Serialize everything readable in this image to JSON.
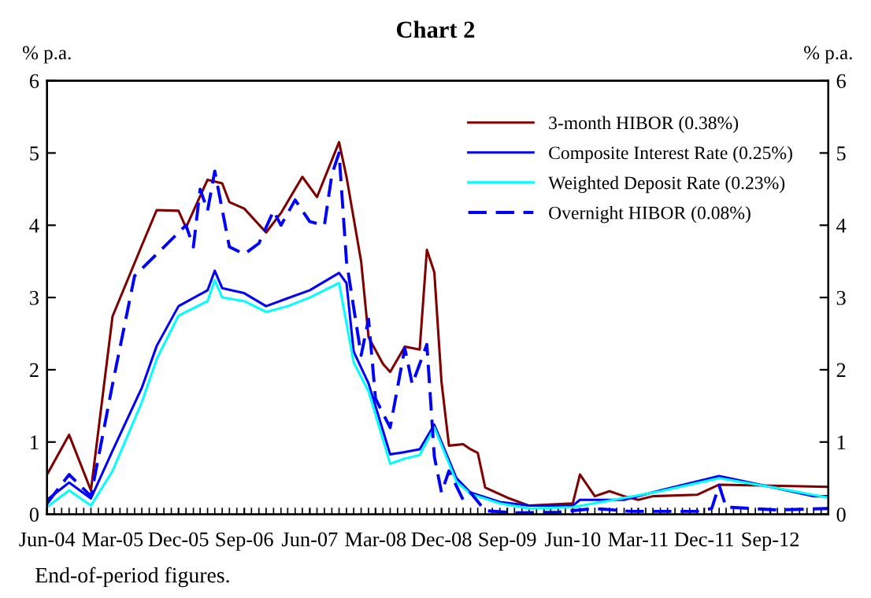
{
  "chart_data": {
    "type": "line",
    "title": "Chart 2",
    "ylabel": "% p.a.",
    "y2label": "% p.a.",
    "annotations": [
      "End-of-period figures."
    ],
    "xlim": [
      "2004-06",
      "2013-05"
    ],
    "xticks": [
      {
        "value": "2004-06",
        "label": "Jun-04"
      },
      {
        "value": "2005-03",
        "label": "Mar-05"
      },
      {
        "value": "2005-12",
        "label": "Dec-05"
      },
      {
        "value": "2006-09",
        "label": "Sep-06"
      },
      {
        "value": "2007-06",
        "label": "Jun-07"
      },
      {
        "value": "2008-03",
        "label": "Mar-08"
      },
      {
        "value": "2008-12",
        "label": "Dec-08"
      },
      {
        "value": "2009-09",
        "label": "Sep-09"
      },
      {
        "value": "2010-06",
        "label": "Jun-10"
      },
      {
        "value": "2011-03",
        "label": "Mar-11"
      },
      {
        "value": "2011-12",
        "label": "Dec-11"
      },
      {
        "value": "2012-09",
        "label": "Sep-12"
      }
    ],
    "ylim": [
      0,
      6
    ],
    "yticks": [
      0,
      1,
      2,
      3,
      4,
      5,
      6
    ],
    "y2lim": [
      0,
      6
    ],
    "y2ticks": [
      0,
      1,
      2,
      3,
      4,
      5,
      6
    ],
    "grid": false,
    "legend": "top right",
    "marker": "none",
    "series": [
      {
        "name": "3-month HIBOR (0.38%)",
        "color": "#800000",
        "line_style": "solid",
        "x": [
          "2004-06",
          "2004-09",
          "2004-12",
          "2005-03",
          "2005-07",
          "2005-09",
          "2005-12",
          "2006-01",
          "2006-04",
          "2006-06",
          "2006-07",
          "2006-09",
          "2006-12",
          "2007-02",
          "2007-05",
          "2007-07",
          "2007-10",
          "2007-11",
          "2008-01",
          "2008-02",
          "2008-04",
          "2008-05",
          "2008-07",
          "2008-09",
          "2008-10",
          "2008-11",
          "2008-12",
          "2009-01",
          "2009-03",
          "2009-04",
          "2009-05",
          "2009-06",
          "2009-09",
          "2009-12",
          "2010-06",
          "2010-07",
          "2010-09",
          "2010-11",
          "2011-01",
          "2011-03",
          "2011-05",
          "2011-11",
          "2012-02",
          "2013-05"
        ],
        "values": [
          0.55,
          1.1,
          0.33,
          2.74,
          3.72,
          4.21,
          4.2,
          3.97,
          4.63,
          4.58,
          4.32,
          4.23,
          3.9,
          4.17,
          4.67,
          4.39,
          5.15,
          4.67,
          3.5,
          2.45,
          2.08,
          1.97,
          2.32,
          2.28,
          3.66,
          3.35,
          1.83,
          0.95,
          0.97,
          0.9,
          0.85,
          0.37,
          0.23,
          0.12,
          0.15,
          0.55,
          0.25,
          0.32,
          0.25,
          0.2,
          0.25,
          0.27,
          0.41,
          0.38
        ]
      },
      {
        "name": "Composite Interest Rate (0.25%)",
        "color": "#0000ff",
        "line_style": "solid",
        "x": [
          "2004-06",
          "2004-09",
          "2004-12",
          "2005-03",
          "2005-07",
          "2005-09",
          "2005-12",
          "2006-04",
          "2006-05",
          "2006-06",
          "2006-09",
          "2006-12",
          "2007-03",
          "2007-06",
          "2007-10",
          "2007-11",
          "2007-12",
          "2008-02",
          "2008-05",
          "2008-07",
          "2008-09",
          "2008-11",
          "2009-02",
          "2009-04",
          "2009-08",
          "2009-12",
          "2010-06",
          "2010-07",
          "2011-01",
          "2011-06",
          "2012-02",
          "2012-09",
          "2013-03",
          "2013-05"
        ],
        "values": [
          0.2,
          0.44,
          0.22,
          0.88,
          1.75,
          2.33,
          2.88,
          3.1,
          3.37,
          3.13,
          3.06,
          2.88,
          2.99,
          3.1,
          3.34,
          3.2,
          2.25,
          1.81,
          0.83,
          0.86,
          0.9,
          1.24,
          0.5,
          0.3,
          0.17,
          0.12,
          0.12,
          0.2,
          0.2,
          0.33,
          0.53,
          0.38,
          0.25,
          0.25
        ]
      },
      {
        "name": "Weighted Deposit Rate (0.23%)",
        "color": "#00ffff",
        "line_style": "solid",
        "x": [
          "2004-06",
          "2004-09",
          "2004-12",
          "2005-03",
          "2005-07",
          "2005-09",
          "2005-12",
          "2006-04",
          "2006-05",
          "2006-06",
          "2006-09",
          "2006-12",
          "2007-03",
          "2007-06",
          "2007-10",
          "2007-12",
          "2008-02",
          "2008-05",
          "2008-07",
          "2008-09",
          "2008-11",
          "2009-02",
          "2009-04",
          "2009-08",
          "2009-12",
          "2010-06",
          "2010-10",
          "2011-06",
          "2012-02",
          "2012-09",
          "2013-05"
        ],
        "values": [
          0.1,
          0.33,
          0.12,
          0.6,
          1.55,
          2.15,
          2.75,
          2.95,
          3.24,
          3.0,
          2.95,
          2.8,
          2.88,
          3.0,
          3.2,
          2.1,
          1.7,
          0.7,
          0.77,
          0.82,
          1.2,
          0.45,
          0.28,
          0.15,
          0.08,
          0.1,
          0.17,
          0.32,
          0.5,
          0.38,
          0.23
        ]
      },
      {
        "name": "Overnight HIBOR (0.08%)",
        "color": "#0000ff",
        "line_style": "dashed",
        "x": [
          "2004-06",
          "2004-09",
          "2004-12",
          "2005-03",
          "2005-06",
          "2005-09",
          "2005-11",
          "2006-01",
          "2006-02",
          "2006-03",
          "2006-04",
          "2006-05",
          "2006-07",
          "2006-09",
          "2006-11",
          "2007-01",
          "2007-02",
          "2007-04",
          "2007-06",
          "2007-08",
          "2007-09",
          "2007-10",
          "2007-11",
          "2008-01",
          "2008-02",
          "2008-03",
          "2008-05",
          "2008-07",
          "2008-08",
          "2008-10",
          "2008-11",
          "2008-12",
          "2009-01",
          "2009-03",
          "2009-04",
          "2009-06",
          "2009-10",
          "2010-04",
          "2010-09",
          "2011-02",
          "2011-11",
          "2012-01",
          "2012-02",
          "2012-03",
          "2012-10",
          "2013-05"
        ],
        "values": [
          0.15,
          0.55,
          0.25,
          1.8,
          3.3,
          3.6,
          3.8,
          4.0,
          3.7,
          4.5,
          4.2,
          4.75,
          3.7,
          3.6,
          3.75,
          4.2,
          4.0,
          4.35,
          4.05,
          4.0,
          4.7,
          5.0,
          3.5,
          2.2,
          2.7,
          1.6,
          1.2,
          2.3,
          1.8,
          2.35,
          0.8,
          0.3,
          0.6,
          0.2,
          0.3,
          0.05,
          0.02,
          0.03,
          0.08,
          0.04,
          0.04,
          0.08,
          0.4,
          0.1,
          0.06,
          0.08
        ]
      }
    ]
  }
}
